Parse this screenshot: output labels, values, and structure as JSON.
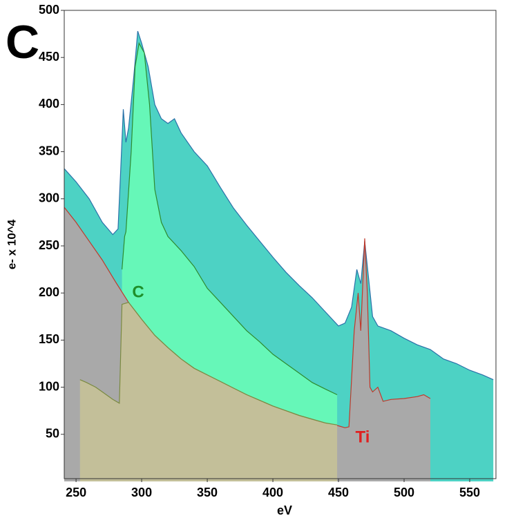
{
  "chart_data": {
    "type": "area",
    "panel_label": "C",
    "xlabel": "eV",
    "ylabel": "e- x 10^4",
    "xlim": [
      241,
      570
    ],
    "ylim": [
      0,
      500
    ],
    "xticks": [
      250,
      300,
      350,
      400,
      450,
      500,
      550
    ],
    "yticks": [
      50,
      100,
      150,
      200,
      250,
      300,
      350,
      400,
      450,
      500
    ],
    "annotations": [
      {
        "text": "C",
        "color": "#1f8f2a"
      },
      {
        "text": "Ti",
        "color": "#e02020"
      }
    ],
    "series": [
      {
        "color": "#4dd2c4",
        "line_color": "#2a70a8",
        "x": [
          241,
          250,
          260,
          270,
          278,
          282,
          284,
          286,
          288,
          290,
          294,
          297,
          300,
          305,
          310,
          315,
          320,
          325,
          330,
          340,
          350,
          360,
          370,
          380,
          390,
          400,
          410,
          420,
          430,
          440,
          450,
          455,
          460,
          464,
          467,
          470,
          473,
          476,
          480,
          490,
          500,
          510,
          520,
          530,
          540,
          550,
          560,
          568
        ],
        "values": [
          332,
          318,
          300,
          275,
          262,
          268,
          330,
          395,
          360,
          375,
          430,
          478,
          465,
          440,
          400,
          385,
          380,
          385,
          370,
          350,
          335,
          312,
          290,
          272,
          255,
          238,
          222,
          208,
          195,
          180,
          165,
          168,
          185,
          225,
          210,
          255,
          215,
          175,
          165,
          160,
          152,
          145,
          140,
          130,
          125,
          118,
          113,
          108
        ]
      },
      {
        "color": "#66f7b8",
        "line_color": "#2e8b2e",
        "x": [
          285,
          287,
          288,
          292,
          295,
          298,
          302,
          306,
          310,
          315,
          320,
          330,
          340,
          350,
          360,
          370,
          380,
          390,
          400,
          410,
          420,
          430,
          440,
          449
        ],
        "values": [
          225,
          260,
          265,
          350,
          440,
          465,
          455,
          400,
          310,
          275,
          260,
          245,
          228,
          205,
          190,
          175,
          160,
          148,
          135,
          125,
          115,
          105,
          98,
          92
        ]
      },
      {
        "color": "#a9a9a9",
        "line_color": "#c0392b",
        "x": [
          241,
          250,
          260,
          270,
          280,
          290,
          300,
          310,
          320,
          330,
          340,
          350,
          360,
          370,
          380,
          390,
          400,
          410,
          420,
          430,
          440,
          450,
          455,
          458,
          462,
          465,
          467,
          470,
          472,
          474,
          476,
          480,
          484,
          490,
          500,
          510,
          515,
          520
        ],
        "values": [
          291,
          275,
          255,
          235,
          212,
          190,
          172,
          155,
          142,
          130,
          120,
          113,
          106,
          99,
          92,
          86,
          80,
          75,
          70,
          66,
          62,
          59,
          57,
          58,
          160,
          200,
          160,
          258,
          200,
          100,
          95,
          100,
          85,
          87,
          88,
          90,
          92,
          88
        ]
      },
      {
        "color": "#c3bf99",
        "line_color": "#7a8a40",
        "x": [
          253,
          258,
          265,
          270,
          278,
          283,
          285,
          290,
          300,
          310,
          320,
          330,
          340,
          350,
          360,
          370,
          380,
          390,
          400,
          410,
          420,
          430,
          440,
          449
        ],
        "values": [
          108,
          105,
          100,
          95,
          87,
          83,
          188,
          190,
          172,
          155,
          142,
          130,
          120,
          113,
          106,
          99,
          92,
          86,
          80,
          75,
          70,
          66,
          62,
          60
        ]
      }
    ]
  }
}
